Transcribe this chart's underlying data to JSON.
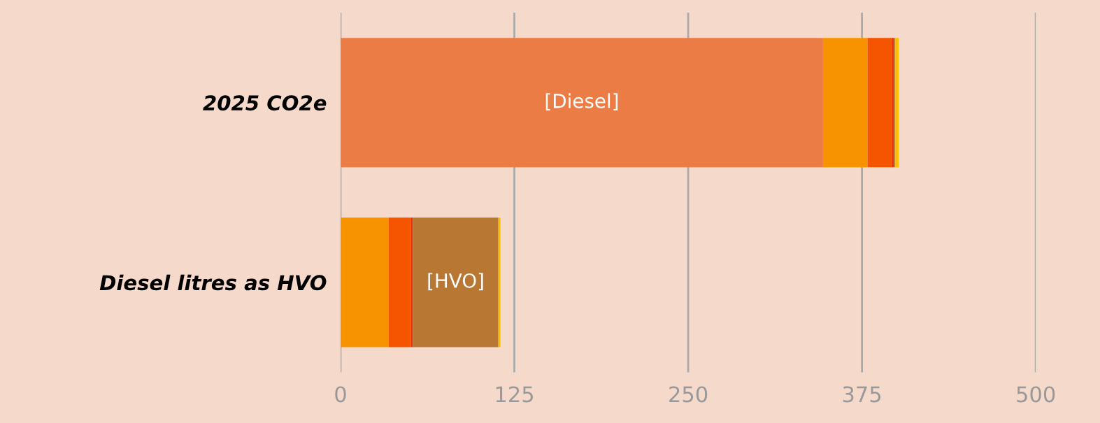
{
  "chart_data": {
    "type": "bar",
    "orientation": "horizontal",
    "stacked": true,
    "categories": [
      "2025 CO2e",
      "Diesel litres as HVO"
    ],
    "series": [
      {
        "name": "[Diesel]",
        "color": "#ec7c45",
        "values": [
          347,
          0
        ]
      },
      {
        "color": "#f89300",
        "values": [
          32,
          34.5
        ]
      },
      {
        "color": "#f55500",
        "values": [
          17.5,
          16
        ]
      },
      {
        "color": "#e8300a",
        "values": [
          1.5,
          1.5
        ]
      },
      {
        "name": "[HVO]",
        "color": "#b87833",
        "values": [
          1,
          61.5
        ]
      },
      {
        "color": "#fbbf00",
        "values": [
          2.5,
          1.5
        ]
      }
    ],
    "xlim": [
      0,
      500
    ],
    "xticks": [
      0,
      125,
      250,
      375,
      500
    ],
    "grid": "x",
    "legend": false
  }
}
